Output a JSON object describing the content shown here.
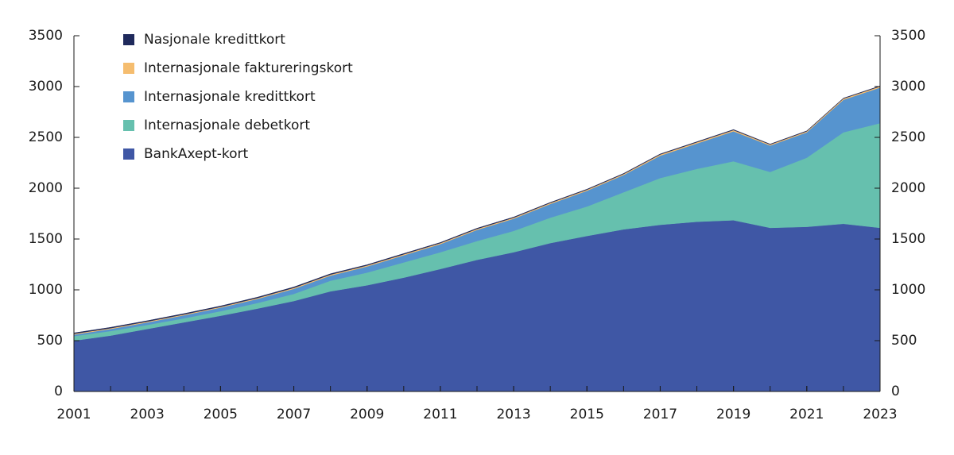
{
  "chart_data": {
    "type": "stacked_area",
    "x": [
      2001,
      2002,
      2003,
      2004,
      2005,
      2006,
      2007,
      2008,
      2009,
      2010,
      2011,
      2012,
      2013,
      2014,
      2015,
      2016,
      2017,
      2018,
      2019,
      2020,
      2021,
      2022,
      2023
    ],
    "xlim": [
      2001,
      2023
    ],
    "xticks": [
      2001,
      2003,
      2005,
      2007,
      2009,
      2011,
      2013,
      2015,
      2017,
      2019,
      2021,
      2023
    ],
    "ylim": [
      0,
      3500
    ],
    "yticks": [
      0,
      500,
      1000,
      1500,
      2000,
      2500,
      3000,
      3500
    ],
    "y2lim": [
      0,
      3500
    ],
    "y2ticks": [
      0,
      500,
      1000,
      1500,
      2000,
      2500,
      3000,
      3500
    ],
    "legend": "upper-left",
    "series": [
      {
        "name": "BankAxept-kort",
        "color": "#3f57a5",
        "values": [
          500,
          550,
          615,
          680,
          745,
          815,
          890,
          985,
          1045,
          1120,
          1205,
          1295,
          1370,
          1460,
          1530,
          1595,
          1640,
          1670,
          1685,
          1610,
          1620,
          1650,
          1610
        ]
      },
      {
        "name": "Internasjonale debetkort",
        "color": "#66c0ae",
        "values": [
          45,
          45,
          40,
          40,
          45,
          55,
          70,
          105,
          125,
          150,
          165,
          185,
          210,
          250,
          290,
          365,
          460,
          520,
          580,
          550,
          680,
          900,
          1030
        ]
      },
      {
        "name": "Internasjonale kredittkort",
        "color": "#5694cf",
        "values": [
          15,
          20,
          25,
          30,
          35,
          40,
          50,
          50,
          60,
          70,
          80,
          110,
          120,
          135,
          155,
          170,
          220,
          250,
          295,
          260,
          250,
          320,
          350
        ]
      },
      {
        "name": "Internasjonale faktureringskort",
        "color": "#f5bd6f",
        "values": [
          8,
          8,
          8,
          8,
          8,
          9,
          10,
          10,
          10,
          10,
          10,
          10,
          10,
          10,
          10,
          10,
          12,
          12,
          12,
          10,
          10,
          12,
          12
        ]
      },
      {
        "name": "Nasjonale kredittkort",
        "color": "#1f2a5c",
        "values": [
          8,
          8,
          8,
          8,
          8,
          8,
          8,
          8,
          7,
          7,
          6,
          6,
          6,
          5,
          5,
          5,
          5,
          5,
          5,
          4,
          4,
          4,
          4
        ]
      }
    ]
  }
}
